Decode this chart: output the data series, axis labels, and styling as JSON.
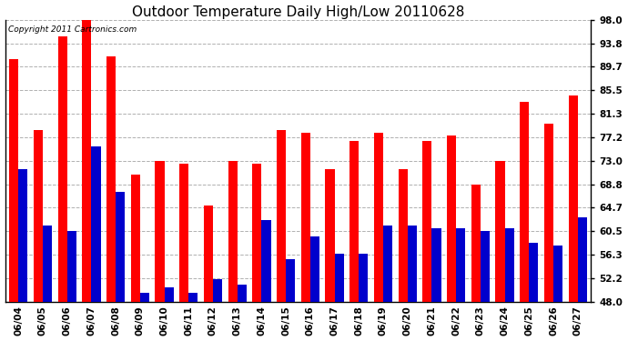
{
  "title": "Outdoor Temperature Daily High/Low 20110628",
  "copyright_text": "Copyright 2011 Cartronics.com",
  "categories": [
    "06/04",
    "06/05",
    "06/06",
    "06/07",
    "06/08",
    "06/09",
    "06/10",
    "06/11",
    "06/12",
    "06/13",
    "06/14",
    "06/15",
    "06/16",
    "06/17",
    "06/18",
    "06/19",
    "06/20",
    "06/21",
    "06/22",
    "06/23",
    "06/24",
    "06/25",
    "06/26",
    "06/27"
  ],
  "highs": [
    91.0,
    78.5,
    95.0,
    98.5,
    91.5,
    70.5,
    73.0,
    72.5,
    65.0,
    73.0,
    72.5,
    78.5,
    78.0,
    71.5,
    76.5,
    78.0,
    71.5,
    76.5,
    77.5,
    68.8,
    73.0,
    83.5,
    79.5,
    84.5
  ],
  "lows": [
    71.5,
    61.5,
    60.5,
    75.5,
    67.5,
    49.5,
    50.5,
    49.5,
    52.0,
    51.0,
    62.5,
    55.5,
    59.5,
    56.5,
    56.5,
    61.5,
    61.5,
    61.0,
    61.0,
    60.5,
    61.0,
    58.5,
    58.0,
    63.0
  ],
  "high_color": "#ff0000",
  "low_color": "#0000cc",
  "bg_color": "#ffffff",
  "plot_bg_color": "#ffffff",
  "grid_color": "#b0b0b0",
  "yticks": [
    48.0,
    52.2,
    56.3,
    60.5,
    64.7,
    68.8,
    73.0,
    77.2,
    81.3,
    85.5,
    89.7,
    93.8,
    98.0
  ],
  "ymin": 48.0,
  "ymax": 98.0,
  "bar_width": 0.38,
  "title_fontsize": 11,
  "tick_fontsize": 7.5,
  "copyright_fontsize": 6.5
}
